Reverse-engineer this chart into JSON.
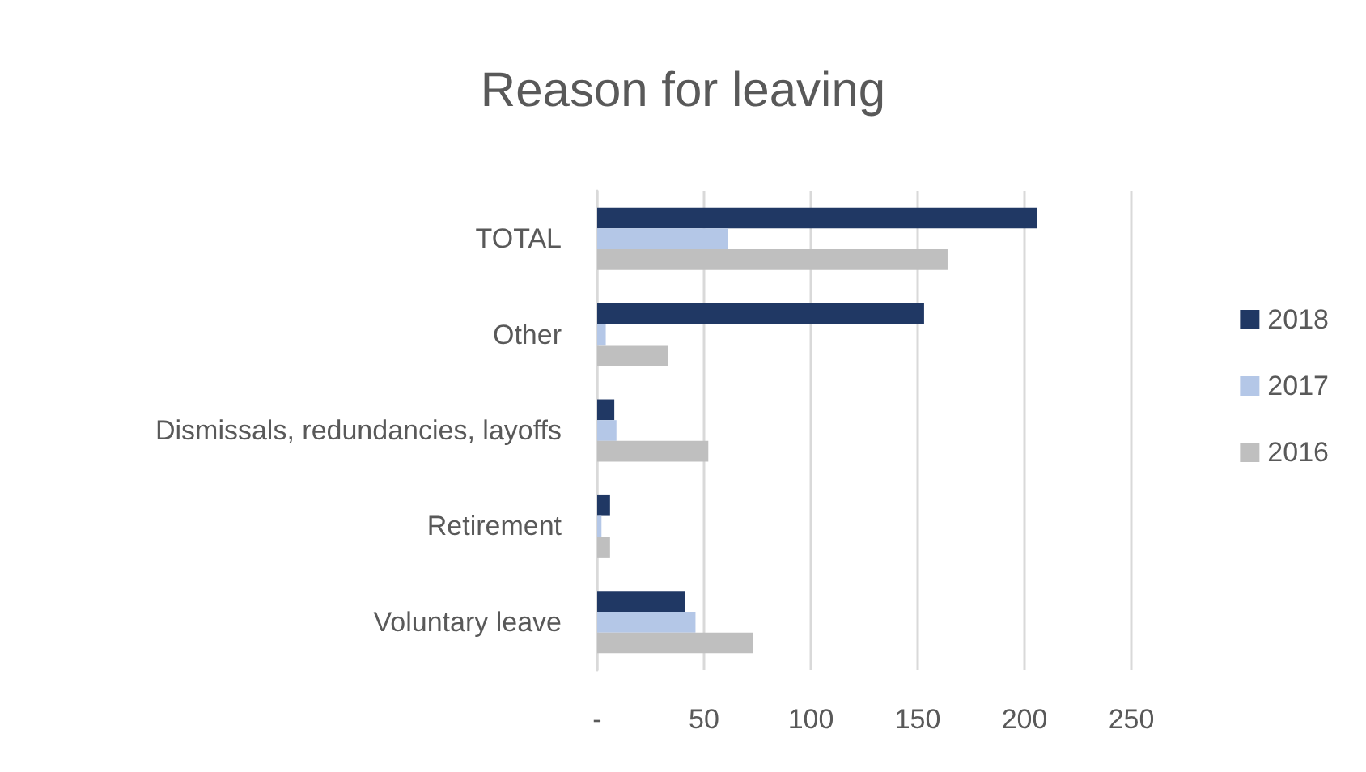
{
  "chart_data": {
    "type": "bar",
    "orientation": "horizontal",
    "title": "Reason for leaving",
    "categories": [
      "TOTAL",
      "Other",
      "Dismissals, redundancies, layoffs",
      "Retirement",
      "Voluntary leave"
    ],
    "series": [
      {
        "name": "2018",
        "color": "#203864",
        "values": [
          206,
          153,
          8,
          6,
          41
        ]
      },
      {
        "name": "2017",
        "color": "#b4c7e7",
        "values": [
          61,
          4,
          9,
          2,
          46
        ]
      },
      {
        "name": "2016",
        "color": "#bfbfbf",
        "values": [
          164,
          33,
          52,
          6,
          73
        ]
      }
    ],
    "xlim": [
      0,
      250
    ],
    "xticks": [
      {
        "value": 0,
        "label": "-"
      },
      50,
      100,
      150,
      200,
      250
    ],
    "grid": "x",
    "legend": "right"
  }
}
